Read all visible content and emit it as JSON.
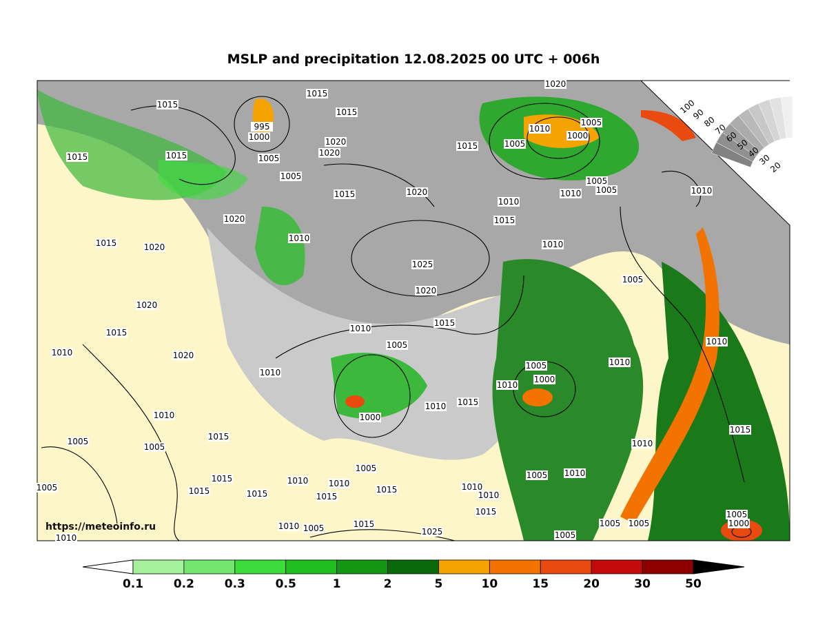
{
  "title": "MSLP and precipitation 12.08.2025 00 UTC + 006h",
  "source": "https://meteoinfo.ru",
  "cloud_scale": [
    100,
    90,
    80,
    70,
    60,
    50,
    40,
    30,
    20
  ],
  "colorbar": {
    "labels": [
      0.1,
      0.2,
      0.3,
      0.5,
      1,
      2,
      5,
      10,
      15,
      20,
      30,
      50
    ],
    "colors": [
      "#a6f29c",
      "#74e670",
      "#3cdc3c",
      "#1fbf1f",
      "#139713",
      "#0a6a0a",
      "#f5a300",
      "#f27300",
      "#e84a10",
      "#c40a0a",
      "#8e0000"
    ]
  },
  "isobar_labels": [
    1015,
    1015,
    1015,
    995,
    1000,
    1020,
    1020,
    1005,
    1015,
    1015,
    1005,
    1015,
    1020,
    1015,
    1010,
    1005,
    1000,
    1005,
    1010,
    1010,
    1005,
    1005,
    1010,
    1020,
    1015,
    1010,
    1015,
    1020,
    1025,
    1010,
    1005,
    1020,
    1020,
    1015,
    1015,
    1010,
    1005,
    1010,
    1020,
    1010,
    1005,
    1000,
    1010,
    1010,
    1010,
    1015,
    1010,
    1000,
    1010,
    1015,
    1005,
    1005,
    1010,
    1015,
    1015,
    1005,
    1015,
    1015,
    1010,
    1010,
    1005,
    1015,
    1015,
    1010,
    1010,
    1015,
    1005,
    1010,
    1005,
    1000,
    1005,
    1005,
    1005,
    1015,
    1010,
    1005,
    1025,
    1010,
    1020
  ]
}
